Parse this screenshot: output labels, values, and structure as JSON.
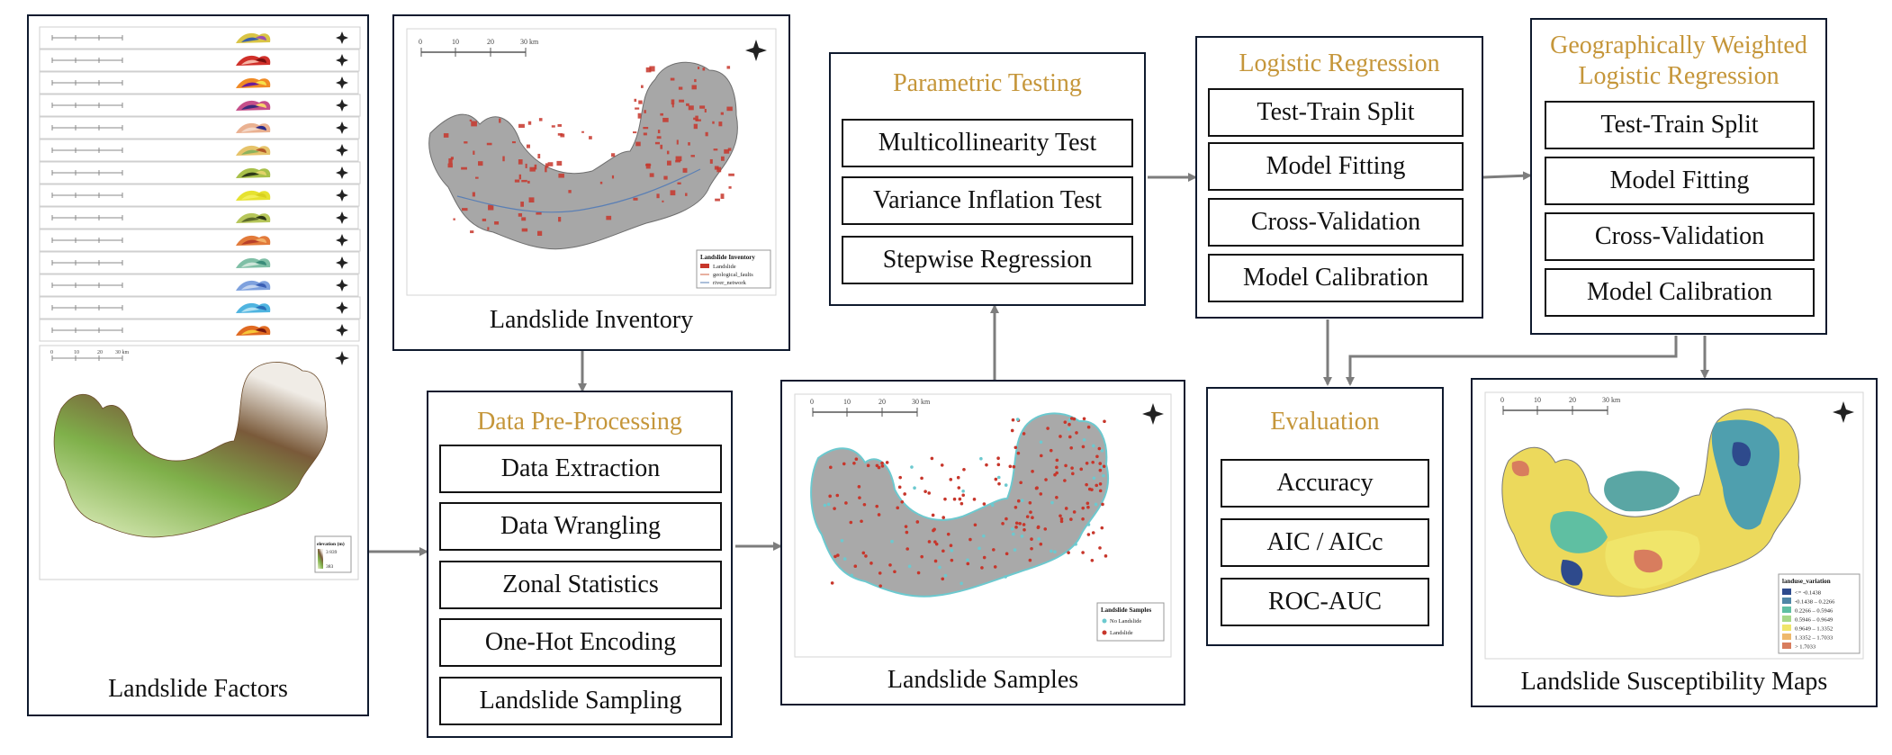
{
  "colors": {
    "panel_border": "#0f1a2e",
    "heading": "#c5963a",
    "arrow": "#7d7d7d",
    "landslide_red": "#c7362b",
    "sample_cyan": "#6cc9cf"
  },
  "factors": {
    "caption": "Landslide Factors",
    "scale_ticks": [
      "0",
      "10",
      "20",
      "30 km"
    ],
    "legend_title": "elevation (m)",
    "legend_max": "3 839",
    "legend_min": "383",
    "strip_count": 14
  },
  "inventory": {
    "caption": "Landslide Inventory",
    "scale_ticks": [
      "0",
      "10",
      "20",
      "30 km"
    ],
    "legend_title": "Landslide Inventory",
    "legend_items": [
      "Landslide",
      "geological_faults",
      "river_network"
    ]
  },
  "preprocessing": {
    "title": "Data Pre-Processing",
    "steps": [
      "Data Extraction",
      "Data Wrangling",
      "Zonal Statistics",
      "One-Hot Encoding",
      "Landslide Sampling"
    ]
  },
  "samples": {
    "caption": "Landslide Samples",
    "scale_ticks": [
      "0",
      "10",
      "20",
      "30 km"
    ],
    "legend_title": "Landslide Samples",
    "legend_items": [
      "No Landslide",
      "Landslide"
    ]
  },
  "parametric": {
    "title": "Parametric Testing",
    "steps": [
      "Multicollinearity Test",
      "Variance Inflation Test",
      "Stepwise Regression"
    ]
  },
  "logistic": {
    "title": "Logistic Regression",
    "steps": [
      "Test-Train Split",
      "Model Fitting",
      "Cross-Validation",
      "Model Calibration"
    ]
  },
  "gwlr": {
    "title_line1": "Geographically Weighted",
    "title_line2": "Logistic Regression",
    "steps": [
      "Test-Train Split",
      "Model Fitting",
      "Cross-Validation",
      "Model Calibration"
    ]
  },
  "evaluation": {
    "title": "Evaluation",
    "steps": [
      "Accuracy",
      "AIC / AICc",
      "ROC-AUC"
    ]
  },
  "susceptibility": {
    "caption": "Landslide Susceptibility Maps",
    "scale_ticks": [
      "0",
      "10",
      "20",
      "30 km"
    ],
    "legend_title": "landuse_variation",
    "legend_items": [
      "<= -0.1438",
      "-0.1438 – 0.2266",
      "0.2266 – 0.5946",
      "0.5946 – 0.9649",
      "0.9649 – 1.3352",
      "1.3352 – 1.7033",
      "> 1.7033"
    ],
    "legend_colors": [
      "#2e4a8c",
      "#4f86a6",
      "#5fbfa2",
      "#a8d888",
      "#f0e56a",
      "#eeb86c",
      "#d87d5e"
    ]
  }
}
